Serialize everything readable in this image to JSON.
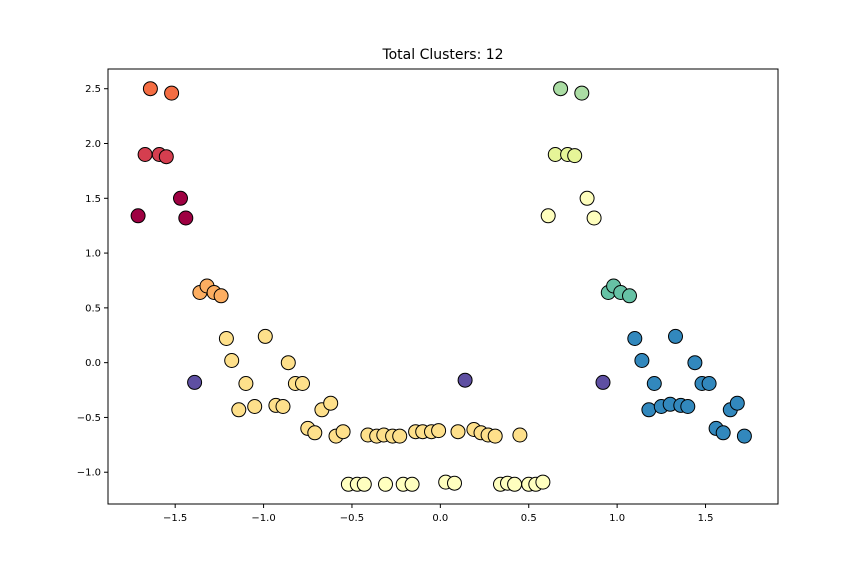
{
  "chart_data": {
    "type": "scatter",
    "title": "Total Clusters: 12",
    "xlabel": "",
    "ylabel": "",
    "xlim": [
      -1.88,
      1.91
    ],
    "ylim": [
      -1.29,
      2.68
    ],
    "xticks": [
      -1.5,
      -1.0,
      -0.5,
      0.0,
      0.5,
      1.0,
      1.5
    ],
    "xtick_labels": [
      "−1.5",
      "−1.0",
      "−0.5",
      "0.0",
      "0.5",
      "1.0",
      "1.5"
    ],
    "yticks": [
      -1.0,
      -0.5,
      0.0,
      0.5,
      1.0,
      1.5,
      2.0,
      2.5
    ],
    "ytick_labels": [
      "−1.0",
      "−0.5",
      "0.0",
      "0.5",
      "1.0",
      "1.5",
      "2.0",
      "2.5"
    ],
    "grid": false,
    "series": [
      {
        "color": "#9e0142",
        "points": [
          [
            -1.71,
            1.34
          ],
          [
            -1.47,
            1.5
          ],
          [
            -1.44,
            1.32
          ]
        ]
      },
      {
        "color": "#d53e4f",
        "points": [
          [
            -1.67,
            1.9
          ],
          [
            -1.59,
            1.9
          ],
          [
            -1.55,
            1.88
          ]
        ]
      },
      {
        "color": "#f46d43",
        "points": [
          [
            -1.64,
            2.5
          ],
          [
            -1.52,
            2.46
          ]
        ]
      },
      {
        "color": "#fdae61",
        "points": [
          [
            -1.36,
            0.64
          ],
          [
            -1.32,
            0.7
          ],
          [
            -1.28,
            0.64
          ],
          [
            -1.24,
            0.61
          ]
        ]
      },
      {
        "color": "#fee08b",
        "points": [
          [
            -1.21,
            0.22
          ],
          [
            -1.18,
            0.02
          ],
          [
            -1.14,
            -0.43
          ],
          [
            -1.1,
            -0.19
          ],
          [
            -1.05,
            -0.4
          ],
          [
            -0.99,
            0.24
          ],
          [
            -0.93,
            -0.39
          ],
          [
            -0.89,
            -0.4
          ],
          [
            -0.86,
            0.0
          ],
          [
            -0.82,
            -0.19
          ],
          [
            -0.78,
            -0.19
          ],
          [
            -0.75,
            -0.6
          ],
          [
            -0.71,
            -0.64
          ],
          [
            -0.67,
            -0.43
          ],
          [
            -0.62,
            -0.37
          ],
          [
            -0.59,
            -0.67
          ],
          [
            -0.55,
            -0.63
          ],
          [
            -0.41,
            -0.66
          ],
          [
            -0.36,
            -0.67
          ],
          [
            -0.32,
            -0.66
          ],
          [
            -0.27,
            -0.67
          ],
          [
            -0.23,
            -0.67
          ],
          [
            -0.14,
            -0.63
          ],
          [
            -0.1,
            -0.63
          ],
          [
            -0.05,
            -0.63
          ],
          [
            -0.01,
            -0.62
          ],
          [
            0.1,
            -0.63
          ],
          [
            0.19,
            -0.61
          ],
          [
            0.23,
            -0.64
          ],
          [
            0.27,
            -0.66
          ],
          [
            0.31,
            -0.67
          ],
          [
            0.45,
            -0.66
          ]
        ]
      },
      {
        "color": "#ffffbf",
        "points": [
          [
            -0.52,
            -1.11
          ],
          [
            -0.47,
            -1.11
          ],
          [
            -0.43,
            -1.11
          ],
          [
            -0.31,
            -1.11
          ],
          [
            -0.21,
            -1.11
          ],
          [
            -0.16,
            -1.11
          ],
          [
            0.03,
            -1.09
          ],
          [
            0.08,
            -1.1
          ],
          [
            0.34,
            -1.11
          ],
          [
            0.38,
            -1.1
          ],
          [
            0.42,
            -1.11
          ],
          [
            0.5,
            -1.11
          ],
          [
            0.54,
            -1.11
          ],
          [
            0.58,
            -1.09
          ]
        ]
      },
      {
        "color": "#fefebd",
        "points": [
          [
            0.61,
            1.34
          ],
          [
            0.83,
            1.5
          ],
          [
            0.87,
            1.32
          ]
        ]
      },
      {
        "color": "#e6f598",
        "points": [
          [
            0.65,
            1.9
          ],
          [
            0.72,
            1.9
          ],
          [
            0.76,
            1.89
          ]
        ]
      },
      {
        "color": "#abdda4",
        "points": [
          [
            0.68,
            2.5
          ],
          [
            0.8,
            2.46
          ]
        ]
      },
      {
        "color": "#66c2a5",
        "points": [
          [
            0.95,
            0.64
          ],
          [
            0.98,
            0.7
          ],
          [
            1.02,
            0.64
          ],
          [
            1.07,
            0.61
          ]
        ]
      },
      {
        "color": "#3288bd",
        "points": [
          [
            1.1,
            0.22
          ],
          [
            1.14,
            0.02
          ],
          [
            1.18,
            -0.43
          ],
          [
            1.21,
            -0.19
          ],
          [
            1.25,
            -0.4
          ],
          [
            1.3,
            -0.38
          ],
          [
            1.33,
            0.24
          ],
          [
            1.36,
            -0.39
          ],
          [
            1.4,
            -0.4
          ],
          [
            1.44,
            0.0
          ],
          [
            1.48,
            -0.19
          ],
          [
            1.52,
            -0.19
          ],
          [
            1.56,
            -0.6
          ],
          [
            1.6,
            -0.64
          ],
          [
            1.64,
            -0.43
          ],
          [
            1.68,
            -0.37
          ],
          [
            1.72,
            -0.67
          ]
        ]
      },
      {
        "color": "#5e4fa2",
        "points": [
          [
            -1.39,
            -0.18
          ],
          [
            0.14,
            -0.16
          ],
          [
            0.92,
            -0.18
          ]
        ]
      }
    ]
  }
}
